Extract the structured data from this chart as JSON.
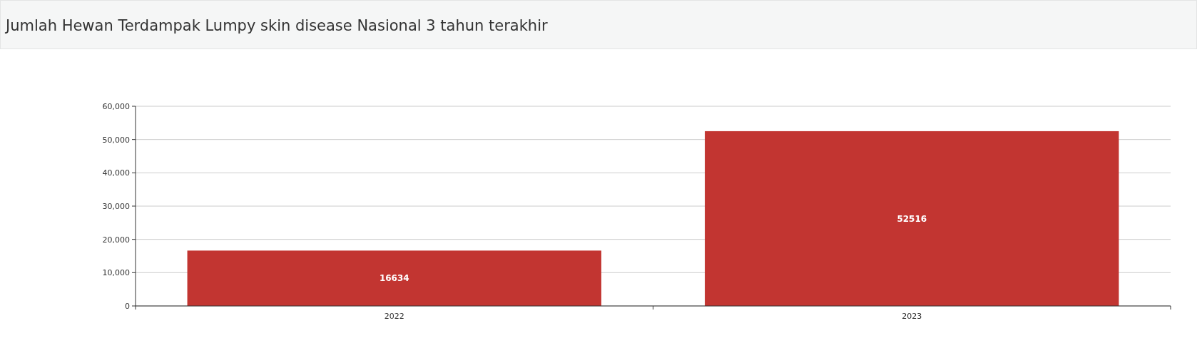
{
  "chart_data": {
    "type": "bar",
    "title": "Jumlah Hewan Terdampak Lumpy skin disease Nasional 3 tahun terakhir",
    "categories": [
      "2022",
      "2023"
    ],
    "values": [
      16634,
      52516
    ],
    "color": "#c23531",
    "ylim": [
      0,
      60000
    ],
    "yticks": [
      0,
      {
        "value": 10000,
        "label": "10,000"
      },
      {
        "value": 20000,
        "label": "20,000"
      },
      {
        "value": 30000,
        "label": "30,000"
      },
      {
        "value": 40000,
        "label": "40,000"
      },
      {
        "value": 50000,
        "label": "50,000"
      },
      {
        "value": 60000,
        "label": "60,000"
      }
    ],
    "grid": "y",
    "data_labels": true
  }
}
